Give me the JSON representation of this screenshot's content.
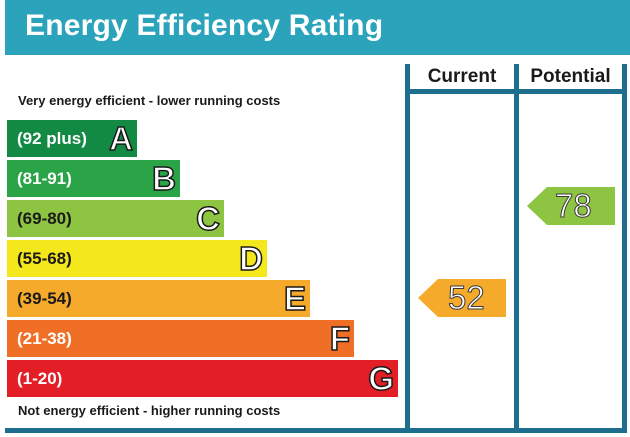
{
  "header": {
    "title": "Energy Efficiency Rating"
  },
  "columns": {
    "current": "Current",
    "potential": "Potential"
  },
  "captions": {
    "top": "Very energy efficient - lower running costs",
    "bottom": "Not energy efficient - higher running costs"
  },
  "bands": [
    {
      "letter": "A",
      "range": "(92 plus)",
      "color": "#128a44"
    },
    {
      "letter": "B",
      "range": "(81-91)",
      "color": "#2aa447"
    },
    {
      "letter": "C",
      "range": "(69-80)",
      "color": "#8dc441"
    },
    {
      "letter": "D",
      "range": "(55-68)",
      "color": "#f4e71b"
    },
    {
      "letter": "E",
      "range": "(39-54)",
      "color": "#f6aa2b"
    },
    {
      "letter": "F",
      "range": "(21-38)",
      "color": "#ef6f27"
    },
    {
      "letter": "G",
      "range": "(1-20)",
      "color": "#e31e26"
    }
  ],
  "current": {
    "value": "52",
    "band": "E",
    "color": "#f6aa2b"
  },
  "potential": {
    "value": "78",
    "band": "C",
    "color": "#8dc441"
  }
}
